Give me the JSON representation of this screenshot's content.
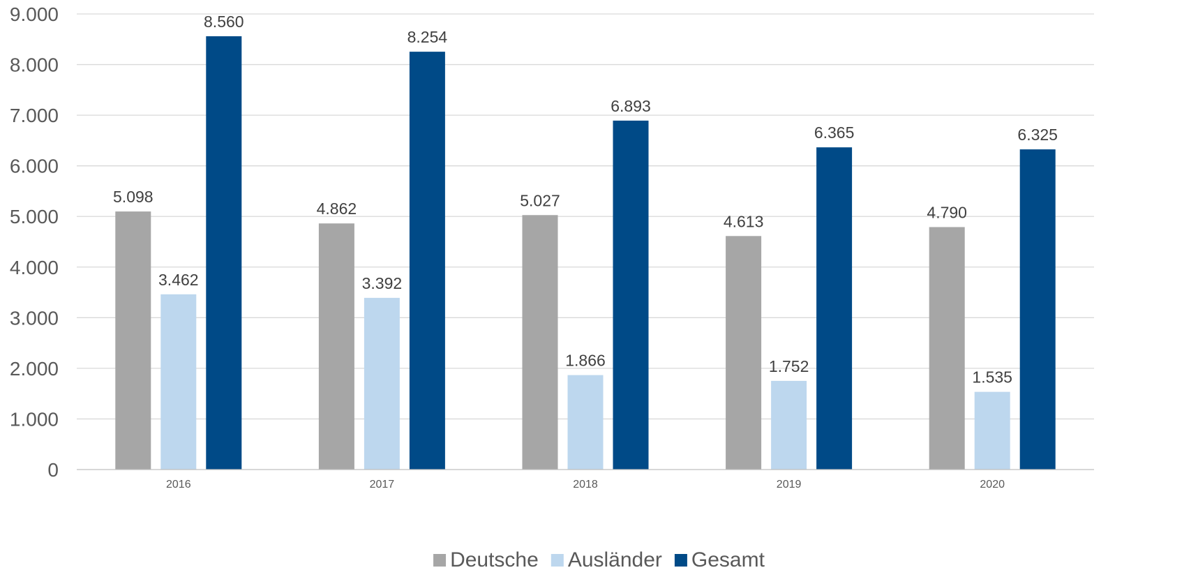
{
  "chart_data": {
    "type": "bar",
    "categories": [
      "2016",
      "2017",
      "2018",
      "2019",
      "2020"
    ],
    "series": [
      {
        "name": "Deutsche",
        "color": "#a6a6a6",
        "values": [
          5098,
          4862,
          5027,
          4613,
          4790
        ],
        "labels": [
          "5.098",
          "4.862",
          "5.027",
          "4.613",
          "4.790"
        ]
      },
      {
        "name": "Ausländer",
        "color": "#bdd7ee",
        "values": [
          3462,
          3392,
          1866,
          1752,
          1535
        ],
        "labels": [
          "3.462",
          "3.392",
          "1.866",
          "1.752",
          "1.535"
        ]
      },
      {
        "name": "Gesamt",
        "color": "#004a87",
        "values": [
          8560,
          8254,
          6893,
          6365,
          6325
        ],
        "labels": [
          "8.560",
          "8.254",
          "6.893",
          "6.365",
          "6.325"
        ]
      }
    ],
    "ylim": [
      0,
      9000
    ],
    "y_ticks": [
      0,
      1000,
      2000,
      3000,
      4000,
      5000,
      6000,
      7000,
      8000,
      9000
    ],
    "y_tick_labels": [
      "0",
      "1.000",
      "2.000",
      "3.000",
      "4.000",
      "5.000",
      "6.000",
      "7.000",
      "8.000",
      "9.000"
    ],
    "grid": true,
    "legend_position": "bottom-center"
  }
}
